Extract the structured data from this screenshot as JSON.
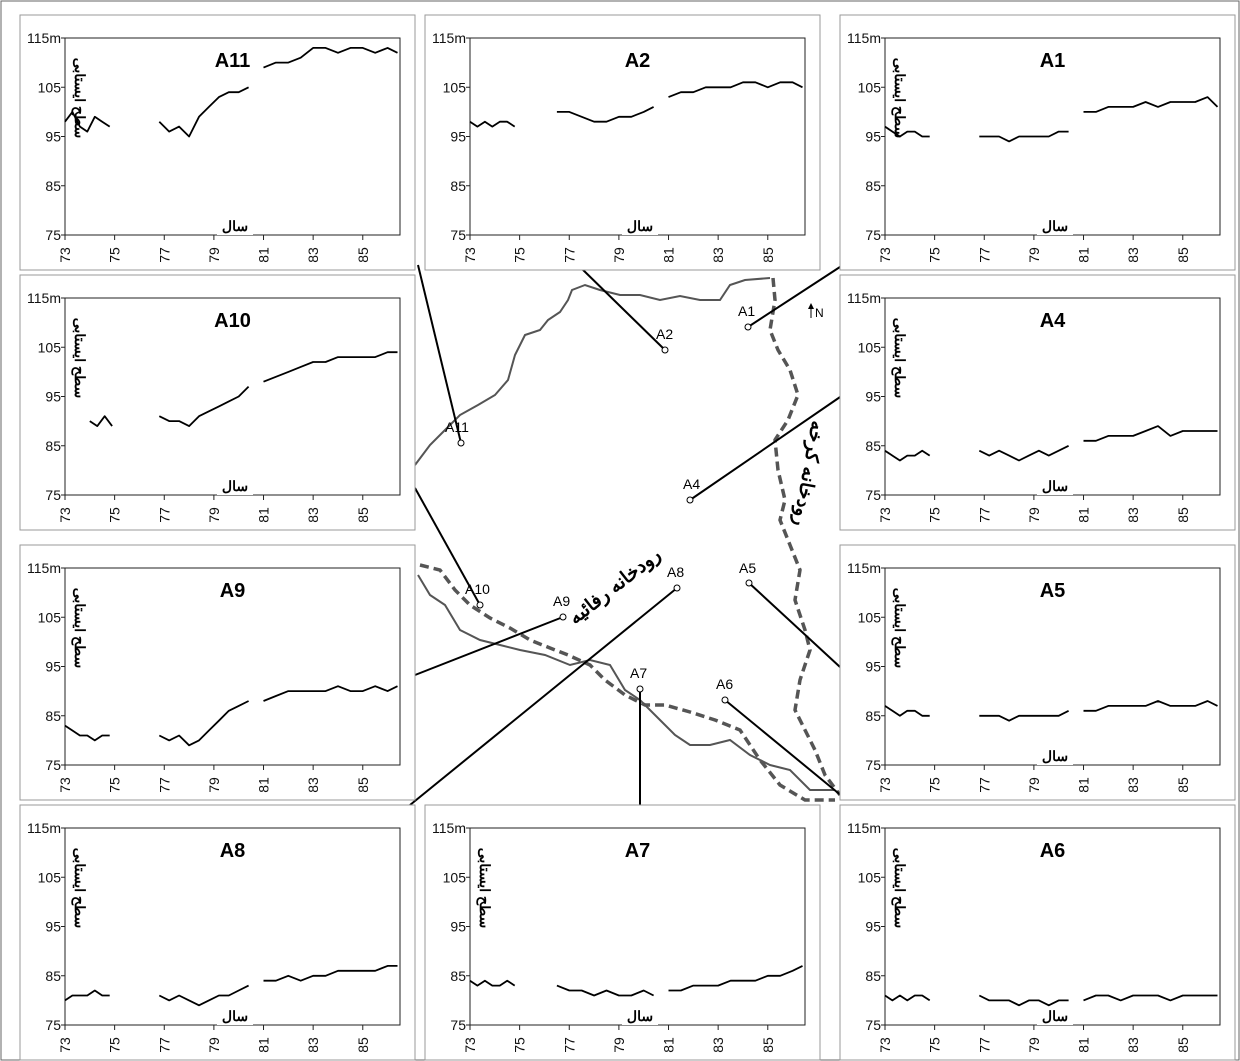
{
  "chart_data": [
    {
      "id": "A11",
      "type": "line",
      "title": "A11",
      "ylabel": "سطح ایستابی",
      "xlabel": "سال",
      "y_unit": "m",
      "ylim": [
        75,
        115
      ],
      "xlim": [
        73,
        86.5
      ],
      "yticks": [
        "115m",
        "105",
        "95",
        "85",
        "75"
      ],
      "xticks": [
        "73",
        "75",
        "77",
        "79",
        "81",
        "83",
        "85"
      ],
      "segments": [
        {
          "x": [
            73.0,
            73.3,
            73.6,
            73.9,
            74.2,
            74.5,
            74.8
          ],
          "y": [
            98,
            100,
            97,
            96,
            99,
            98,
            97
          ]
        },
        {
          "x": [
            76.8,
            77.2,
            77.6,
            78.0,
            78.4,
            78.8,
            79.2,
            79.6,
            80.0,
            80.4
          ],
          "y": [
            98,
            96,
            97,
            95,
            99,
            101,
            103,
            104,
            104,
            105
          ]
        },
        {
          "x": [
            81.0,
            81.5,
            82.0,
            82.5,
            83.0,
            83.5,
            84.0,
            84.5,
            85.0,
            85.5,
            86.0,
            86.4
          ],
          "y": [
            109,
            110,
            110,
            111,
            113,
            113,
            112,
            113,
            113,
            112,
            113,
            112
          ]
        }
      ]
    },
    {
      "id": "A2",
      "type": "line",
      "title": "A2",
      "ylabel": "",
      "xlabel": "سال",
      "y_unit": "m",
      "ylim": [
        75,
        115
      ],
      "xlim": [
        73,
        86.5
      ],
      "yticks": [
        "115m",
        "105",
        "95",
        "85",
        "75"
      ],
      "xticks": [
        "73",
        "75",
        "77",
        "79",
        "81",
        "83",
        "85"
      ],
      "segments": [
        {
          "x": [
            73.0,
            73.3,
            73.6,
            73.9,
            74.2,
            74.5,
            74.8
          ],
          "y": [
            98,
            97,
            98,
            97,
            98,
            98,
            97
          ]
        },
        {
          "x": [
            76.5,
            77.0,
            77.5,
            78.0,
            78.5,
            79.0,
            79.5,
            80.0,
            80.4
          ],
          "y": [
            100,
            100,
            99,
            98,
            98,
            99,
            99,
            100,
            101
          ]
        },
        {
          "x": [
            81.0,
            81.5,
            82.0,
            82.5,
            83.0,
            83.5,
            84.0,
            84.5,
            85.0,
            85.5,
            86.0,
            86.4
          ],
          "y": [
            103,
            104,
            104,
            105,
            105,
            105,
            106,
            106,
            105,
            106,
            106,
            105
          ]
        }
      ]
    },
    {
      "id": "A1",
      "type": "line",
      "title": "A1",
      "ylabel": "سطح ایستابی",
      "xlabel": "سال",
      "y_unit": "m",
      "ylim": [
        75,
        115
      ],
      "xlim": [
        73,
        86.5
      ],
      "yticks": [
        "115m",
        "105",
        "95",
        "85",
        "75"
      ],
      "xticks": [
        "73",
        "75",
        "77",
        "79",
        "81",
        "83",
        "85"
      ],
      "segments": [
        {
          "x": [
            73.0,
            73.3,
            73.6,
            73.9,
            74.2,
            74.5,
            74.8
          ],
          "y": [
            97,
            96,
            95,
            96,
            96,
            95,
            95
          ]
        },
        {
          "x": [
            76.8,
            77.2,
            77.6,
            78.0,
            78.4,
            78.8,
            79.2,
            79.6,
            80.0,
            80.4
          ],
          "y": [
            95,
            95,
            95,
            94,
            95,
            95,
            95,
            95,
            96,
            96
          ]
        },
        {
          "x": [
            81.0,
            81.5,
            82.0,
            82.5,
            83.0,
            83.5,
            84.0,
            84.5,
            85.0,
            85.5,
            86.0,
            86.4
          ],
          "y": [
            100,
            100,
            101,
            101,
            101,
            102,
            101,
            102,
            102,
            102,
            103,
            101
          ]
        }
      ]
    },
    {
      "id": "A10",
      "type": "line",
      "title": "A10",
      "ylabel": "سطح ایستابی",
      "xlabel": "سال",
      "y_unit": "m",
      "ylim": [
        75,
        115
      ],
      "xlim": [
        73,
        86.5
      ],
      "yticks": [
        "115m",
        "105",
        "95",
        "85",
        "75"
      ],
      "xticks": [
        "73",
        "75",
        "77",
        "79",
        "81",
        "83",
        "85"
      ],
      "segments": [
        {
          "x": [
            74.0,
            74.3,
            74.6,
            74.9
          ],
          "y": [
            90,
            89,
            91,
            89
          ]
        },
        {
          "x": [
            76.8,
            77.2,
            77.6,
            78.0,
            78.4,
            78.8,
            79.2,
            79.6,
            80.0,
            80.4
          ],
          "y": [
            91,
            90,
            90,
            89,
            91,
            92,
            93,
            94,
            95,
            97
          ]
        },
        {
          "x": [
            81.0,
            81.5,
            82.0,
            82.5,
            83.0,
            83.5,
            84.0,
            84.5,
            85.0,
            85.5,
            86.0,
            86.4
          ],
          "y": [
            98,
            99,
            100,
            101,
            102,
            102,
            103,
            103,
            103,
            103,
            104,
            104
          ]
        }
      ]
    },
    {
      "id": "A4",
      "type": "line",
      "title": "A4",
      "ylabel": "سطح ایستابی",
      "xlabel": "سال",
      "y_unit": "m",
      "ylim": [
        75,
        115
      ],
      "xlim": [
        73,
        86.5
      ],
      "yticks": [
        "115m",
        "105",
        "95",
        "85",
        "75"
      ],
      "xticks": [
        "73",
        "75",
        "77",
        "79",
        "81",
        "83",
        "85"
      ],
      "segments": [
        {
          "x": [
            73.0,
            73.3,
            73.6,
            73.9,
            74.2,
            74.5,
            74.8
          ],
          "y": [
            84,
            83,
            82,
            83,
            83,
            84,
            83
          ]
        },
        {
          "x": [
            76.8,
            77.2,
            77.6,
            78.0,
            78.4,
            78.8,
            79.2,
            79.6,
            80.0,
            80.4
          ],
          "y": [
            84,
            83,
            84,
            83,
            82,
            83,
            84,
            83,
            84,
            85
          ]
        },
        {
          "x": [
            81.0,
            81.5,
            82.0,
            82.5,
            83.0,
            83.5,
            84.0,
            84.5,
            85.0,
            85.5,
            86.0,
            86.4
          ],
          "y": [
            86,
            86,
            87,
            87,
            87,
            88,
            89,
            87,
            88,
            88,
            88,
            88
          ]
        }
      ]
    },
    {
      "id": "A9",
      "type": "line",
      "title": "A9",
      "ylabel": "سطح ایستابی",
      "xlabel": "",
      "y_unit": "m",
      "ylim": [
        75,
        115
      ],
      "xlim": [
        73,
        86.5
      ],
      "yticks": [
        "115m",
        "105",
        "95",
        "85",
        "75"
      ],
      "xticks": [
        "73",
        "75",
        "77",
        "79",
        "81",
        "83",
        "85"
      ],
      "segments": [
        {
          "x": [
            73.0,
            73.3,
            73.6,
            73.9,
            74.2,
            74.5,
            74.8
          ],
          "y": [
            83,
            82,
            81,
            81,
            80,
            81,
            81
          ]
        },
        {
          "x": [
            76.8,
            77.2,
            77.6,
            78.0,
            78.4,
            78.8,
            79.2,
            79.6,
            80.0,
            80.4
          ],
          "y": [
            81,
            80,
            81,
            79,
            80,
            82,
            84,
            86,
            87,
            88
          ]
        },
        {
          "x": [
            81.0,
            81.5,
            82.0,
            82.5,
            83.0,
            83.5,
            84.0,
            84.5,
            85.0,
            85.5,
            86.0,
            86.4
          ],
          "y": [
            88,
            89,
            90,
            90,
            90,
            90,
            91,
            90,
            90,
            91,
            90,
            91
          ]
        }
      ]
    },
    {
      "id": "A5",
      "type": "line",
      "title": "A5",
      "ylabel": "سطح ایستابی",
      "xlabel": "سال",
      "y_unit": "m",
      "ylim": [
        75,
        115
      ],
      "xlim": [
        73,
        86.5
      ],
      "yticks": [
        "115m",
        "105",
        "95",
        "85",
        "75"
      ],
      "xticks": [
        "73",
        "75",
        "77",
        "79",
        "81",
        "83",
        "85"
      ],
      "segments": [
        {
          "x": [
            73.0,
            73.3,
            73.6,
            73.9,
            74.2,
            74.5,
            74.8
          ],
          "y": [
            87,
            86,
            85,
            86,
            86,
            85,
            85
          ]
        },
        {
          "x": [
            76.8,
            77.2,
            77.6,
            78.0,
            78.4,
            78.8,
            79.2,
            79.6,
            80.0,
            80.4
          ],
          "y": [
            85,
            85,
            85,
            84,
            85,
            85,
            85,
            85,
            85,
            86
          ]
        },
        {
          "x": [
            81.0,
            81.5,
            82.0,
            82.5,
            83.0,
            83.5,
            84.0,
            84.5,
            85.0,
            85.5,
            86.0,
            86.4
          ],
          "y": [
            86,
            86,
            87,
            87,
            87,
            87,
            88,
            87,
            87,
            87,
            88,
            87
          ]
        }
      ]
    },
    {
      "id": "A8",
      "type": "line",
      "title": "A8",
      "ylabel": "سطح ایستابی",
      "xlabel": "سال",
      "y_unit": "m",
      "ylim": [
        75,
        115
      ],
      "xlim": [
        73,
        86.5
      ],
      "yticks": [
        "115m",
        "105",
        "95",
        "85",
        "75"
      ],
      "xticks": [
        "73",
        "75",
        "77",
        "79",
        "81",
        "83",
        "85"
      ],
      "segments": [
        {
          "x": [
            73.0,
            73.3,
            73.6,
            73.9,
            74.2,
            74.5,
            74.8
          ],
          "y": [
            80,
            81,
            81,
            81,
            82,
            81,
            81
          ]
        },
        {
          "x": [
            76.8,
            77.2,
            77.6,
            78.0,
            78.4,
            78.8,
            79.2,
            79.6,
            80.0,
            80.4
          ],
          "y": [
            81,
            80,
            81,
            80,
            79,
            80,
            81,
            81,
            82,
            83
          ]
        },
        {
          "x": [
            81.0,
            81.5,
            82.0,
            82.5,
            83.0,
            83.5,
            84.0,
            84.5,
            85.0,
            85.5,
            86.0,
            86.4
          ],
          "y": [
            84,
            84,
            85,
            84,
            85,
            85,
            86,
            86,
            86,
            86,
            87,
            87
          ]
        }
      ]
    },
    {
      "id": "A7",
      "type": "line",
      "title": "A7",
      "ylabel": "سطح ایستابی",
      "xlabel": "سال",
      "y_unit": "m",
      "ylim": [
        75,
        115
      ],
      "xlim": [
        73,
        86.5
      ],
      "yticks": [
        "115m",
        "105",
        "95",
        "85",
        "75"
      ],
      "xticks": [
        "73",
        "75",
        "77",
        "79",
        "81",
        "83",
        "85"
      ],
      "segments": [
        {
          "x": [
            73.0,
            73.3,
            73.6,
            73.9,
            74.2,
            74.5,
            74.8
          ],
          "y": [
            84,
            83,
            84,
            83,
            83,
            84,
            83
          ]
        },
        {
          "x": [
            76.5,
            77.0,
            77.5,
            78.0,
            78.5,
            79.0,
            79.5,
            80.0,
            80.4
          ],
          "y": [
            83,
            82,
            82,
            81,
            82,
            81,
            81,
            82,
            81
          ]
        },
        {
          "x": [
            81.0,
            81.5,
            82.0,
            82.5,
            83.0,
            83.5,
            84.0,
            84.5,
            85.0,
            85.5,
            86.0,
            86.4
          ],
          "y": [
            82,
            82,
            83,
            83,
            83,
            84,
            84,
            84,
            85,
            85,
            86,
            87
          ]
        }
      ]
    },
    {
      "id": "A6",
      "type": "line",
      "title": "A6",
      "ylabel": "سطح ایستابی",
      "xlabel": "سال",
      "y_unit": "m",
      "ylim": [
        75,
        115
      ],
      "xlim": [
        73,
        86.5
      ],
      "yticks": [
        "115m",
        "105",
        "95",
        "85",
        "75"
      ],
      "xticks": [
        "73",
        "75",
        "77",
        "79",
        "81",
        "83",
        "85"
      ],
      "segments": [
        {
          "x": [
            73.0,
            73.3,
            73.6,
            73.9,
            74.2,
            74.5,
            74.8
          ],
          "y": [
            81,
            80,
            81,
            80,
            81,
            81,
            80
          ]
        },
        {
          "x": [
            76.8,
            77.2,
            77.6,
            78.0,
            78.4,
            78.8,
            79.2,
            79.6,
            80.0,
            80.4
          ],
          "y": [
            81,
            80,
            80,
            80,
            79,
            80,
            80,
            79,
            80,
            80
          ]
        },
        {
          "x": [
            81.0,
            81.5,
            82.0,
            82.5,
            83.0,
            83.5,
            84.0,
            84.5,
            85.0,
            85.5,
            86.0,
            86.4
          ],
          "y": [
            80,
            81,
            81,
            80,
            81,
            81,
            81,
            80,
            81,
            81,
            81,
            81
          ]
        }
      ]
    }
  ],
  "map": {
    "north_label": "N",
    "river_karkheh": "رودخانه کرخه",
    "river_rafieh": "رودخانه رفائیه",
    "wells": [
      "A1",
      "A2",
      "A4",
      "A5",
      "A6",
      "A7",
      "A8",
      "A9",
      "A10",
      "A11"
    ]
  }
}
